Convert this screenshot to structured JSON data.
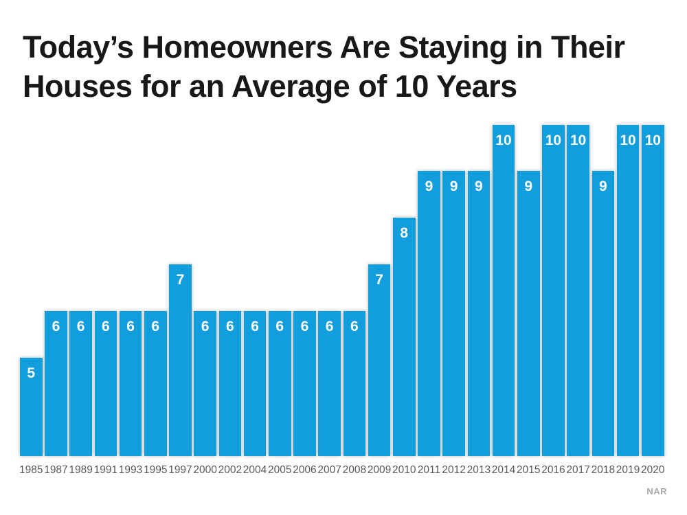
{
  "page": {
    "title_lines": [
      "Today’s Homeowners Are Staying in Their",
      "Houses for an Average of 10 Years"
    ],
    "source": "NAR",
    "background_color": "#ffffff",
    "title_color": "#181818",
    "tick_label_color": "#595959",
    "source_color": "#a9a9a9"
  },
  "chart_data": {
    "type": "bar",
    "title": "Today’s Homeowners Are Staying in Their Houses for an Average of 10 Years",
    "categories": [
      "1985",
      "1987",
      "1989",
      "1991",
      "1993",
      "1995",
      "1997",
      "2000",
      "2002",
      "2004",
      "2005",
      "2006",
      "2007",
      "2008",
      "2009",
      "2010",
      "2011",
      "2012",
      "2013",
      "2014",
      "2015",
      "2016",
      "2017",
      "2018",
      "2019",
      "2020"
    ],
    "values": [
      5,
      6,
      6,
      6,
      6,
      6,
      7,
      6,
      6,
      6,
      6,
      6,
      6,
      6,
      7,
      8,
      9,
      9,
      9,
      10,
      9,
      10,
      10,
      9,
      10,
      10
    ],
    "xlabel": "",
    "ylabel": "",
    "value_range_shown": [
      5,
      10
    ],
    "data_labels": true,
    "data_label_position": "inside-top",
    "grid": false,
    "legend": false,
    "axis_lines": false,
    "bar_color": "#129EDD",
    "data_label_color": "#ffffff",
    "source": "NAR"
  }
}
